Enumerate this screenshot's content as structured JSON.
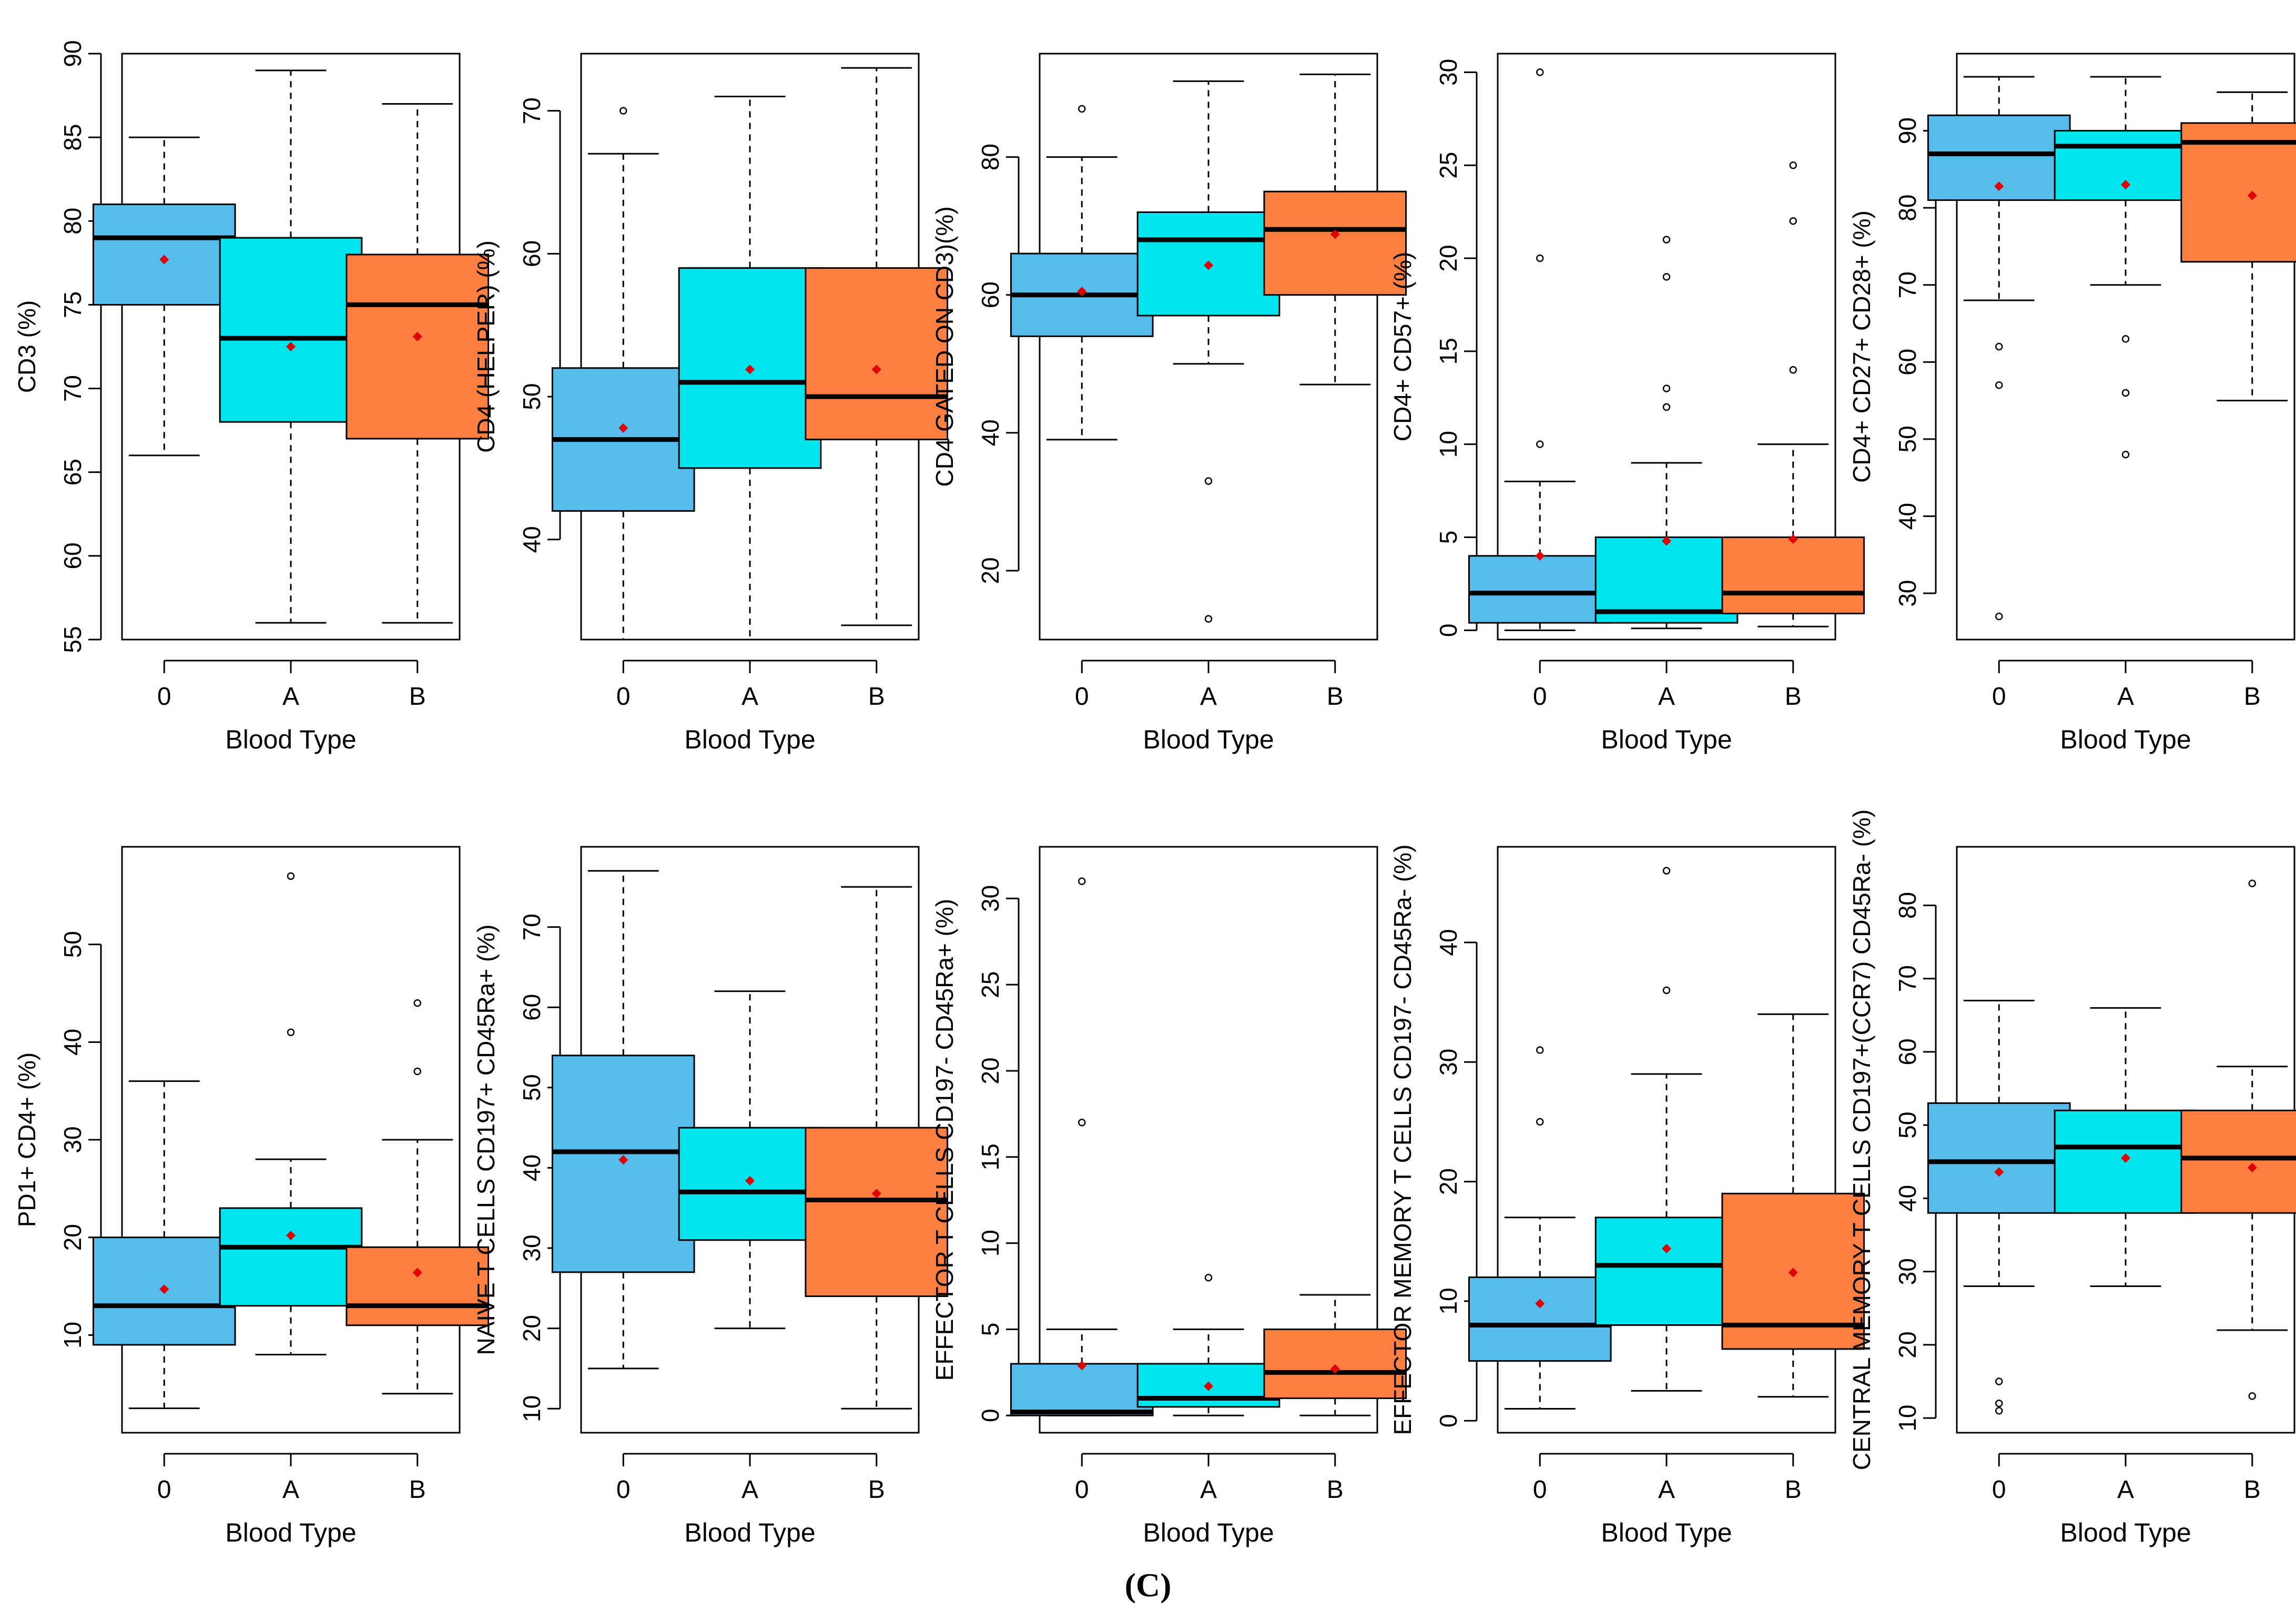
{
  "figure": {
    "panel_label": "(C)",
    "colors": {
      "0": "#56BCEC",
      "A": "#00E5EE",
      "B": "#FF7F40",
      "mean_marker": "#E00000"
    }
  },
  "chart_data": [
    {
      "type": "box",
      "title": "",
      "xlabel": "Blood Type",
      "ylabel": "CD3 (%)",
      "ylim": [
        55,
        90
      ],
      "yticks": [
        55,
        60,
        65,
        70,
        75,
        80,
        85,
        90
      ],
      "categories": [
        "0",
        "A",
        "B"
      ],
      "boxes": [
        {
          "whislo": 66,
          "q1": 75,
          "med": 79,
          "q3": 81,
          "whishi": 85,
          "mean": 77.7,
          "fliers": []
        },
        {
          "whislo": 56,
          "q1": 68,
          "med": 73,
          "q3": 79,
          "whishi": 89,
          "mean": 72.5,
          "fliers": []
        },
        {
          "whislo": 56,
          "q1": 67,
          "med": 75,
          "q3": 78,
          "whishi": 87,
          "mean": 73.1,
          "fliers": []
        }
      ]
    },
    {
      "type": "box",
      "title": "",
      "xlabel": "Blood Type",
      "ylabel": "CD4 (HELPER) (%)",
      "ylim": [
        33,
        74
      ],
      "yticks": [
        40,
        50,
        60,
        70
      ],
      "categories": [
        "0",
        "A",
        "B"
      ],
      "boxes": [
        {
          "whislo": 33,
          "q1": 42,
          "med": 47,
          "q3": 52,
          "whishi": 67,
          "mean": 47.8,
          "fliers": [
            70
          ]
        },
        {
          "whislo": 33,
          "q1": 45,
          "med": 51,
          "q3": 59,
          "whishi": 71,
          "mean": 51.9,
          "fliers": []
        },
        {
          "whislo": 34,
          "q1": 47,
          "med": 50,
          "q3": 59,
          "whishi": 73,
          "mean": 51.9,
          "fliers": []
        }
      ]
    },
    {
      "type": "box",
      "title": "",
      "xlabel": "Blood Type",
      "ylabel": "CD4 GATED ON CD3)(%)",
      "ylim": [
        10,
        95
      ],
      "yticks": [
        20,
        40,
        60,
        80
      ],
      "categories": [
        "0",
        "A",
        "B"
      ],
      "boxes": [
        {
          "whislo": 39,
          "q1": 54,
          "med": 60,
          "q3": 66,
          "whishi": 80,
          "mean": 60.5,
          "fliers": [
            87
          ]
        },
        {
          "whislo": 50,
          "q1": 57,
          "med": 68,
          "q3": 72,
          "whishi": 91,
          "mean": 64.3,
          "fliers": [
            33,
            13
          ]
        },
        {
          "whislo": 47,
          "q1": 60,
          "med": 69.5,
          "q3": 75,
          "whishi": 92,
          "mean": 68.8,
          "fliers": []
        }
      ]
    },
    {
      "type": "box",
      "title": "",
      "xlabel": "Blood Type",
      "ylabel": "CD4+ CD57+ (%)",
      "ylim": [
        -0.5,
        31
      ],
      "yticks": [
        0,
        5,
        10,
        15,
        20,
        25,
        30
      ],
      "categories": [
        "0",
        "A",
        "B"
      ],
      "boxes": [
        {
          "whislo": 0,
          "q1": 0.4,
          "med": 2,
          "q3": 4,
          "whishi": 8,
          "mean": 4,
          "fliers": [
            10,
            20,
            30
          ]
        },
        {
          "whislo": 0.1,
          "q1": 0.4,
          "med": 1,
          "q3": 5,
          "whishi": 9,
          "mean": 4.8,
          "fliers": [
            12,
            13,
            19,
            21
          ]
        },
        {
          "whislo": 0.2,
          "q1": 0.9,
          "med": 2,
          "q3": 5,
          "whishi": 10,
          "mean": 4.9,
          "fliers": [
            14,
            22,
            25
          ]
        }
      ]
    },
    {
      "type": "box",
      "title": "",
      "xlabel": "Blood Type",
      "ylabel": "CD4+ CD27+ CD28+ (%)",
      "ylim": [
        24,
        100
      ],
      "yticks": [
        30,
        40,
        50,
        60,
        70,
        80,
        90
      ],
      "categories": [
        "0",
        "A",
        "B"
      ],
      "boxes": [
        {
          "whislo": 68,
          "q1": 81,
          "med": 87,
          "q3": 92,
          "whishi": 97,
          "mean": 82.8,
          "fliers": [
            62,
            57,
            27
          ]
        },
        {
          "whislo": 70,
          "q1": 81,
          "med": 88,
          "q3": 90,
          "whishi": 97,
          "mean": 83,
          "fliers": [
            63,
            56,
            48
          ]
        },
        {
          "whislo": 55,
          "q1": 73,
          "med": 88.5,
          "q3": 91,
          "whishi": 95,
          "mean": 81.6,
          "fliers": []
        }
      ]
    },
    {
      "type": "box",
      "title": "",
      "xlabel": "Blood Type",
      "ylabel": "PD1+ CD4+ (%)",
      "ylim": [
        0,
        60
      ],
      "yticks": [
        10,
        20,
        30,
        40,
        50
      ],
      "categories": [
        "0",
        "A",
        "B"
      ],
      "boxes": [
        {
          "whislo": 2.5,
          "q1": 9,
          "med": 13,
          "q3": 20,
          "whishi": 36,
          "mean": 14.7,
          "fliers": []
        },
        {
          "whislo": 8,
          "q1": 13,
          "med": 19,
          "q3": 23,
          "whishi": 28,
          "mean": 20.2,
          "fliers": [
            41,
            57
          ]
        },
        {
          "whislo": 4,
          "q1": 11,
          "med": 13,
          "q3": 19,
          "whishi": 30,
          "mean": 16.4,
          "fliers": [
            37,
            44
          ]
        }
      ]
    },
    {
      "type": "box",
      "title": "",
      "xlabel": "Blood Type",
      "ylabel": "NAIVE T CELLS CD197+ CD45Ra+ (%)",
      "ylim": [
        7,
        80
      ],
      "yticks": [
        10,
        20,
        30,
        40,
        50,
        60,
        70
      ],
      "categories": [
        "0",
        "A",
        "B"
      ],
      "boxes": [
        {
          "whislo": 15,
          "q1": 27,
          "med": 42,
          "q3": 54,
          "whishi": 77,
          "mean": 41,
          "fliers": []
        },
        {
          "whislo": 20,
          "q1": 31,
          "med": 37,
          "q3": 45,
          "whishi": 62,
          "mean": 38.4,
          "fliers": []
        },
        {
          "whislo": 10,
          "q1": 24,
          "med": 36,
          "q3": 45,
          "whishi": 75,
          "mean": 36.8,
          "fliers": []
        }
      ]
    },
    {
      "type": "box",
      "title": "",
      "xlabel": "Blood Type",
      "ylabel": "EFFECTOR T CELLS CD197- CD45Ra+ (%)",
      "ylim": [
        -1,
        33
      ],
      "yticks": [
        0,
        5,
        10,
        15,
        20,
        25,
        30
      ],
      "categories": [
        "0",
        "A",
        "B"
      ],
      "boxes": [
        {
          "whislo": 0,
          "q1": 0,
          "med": 0.2,
          "q3": 3,
          "whishi": 5,
          "mean": 2.9,
          "fliers": [
            17,
            31
          ]
        },
        {
          "whislo": 0,
          "q1": 0.5,
          "med": 1,
          "q3": 3,
          "whishi": 5,
          "mean": 1.7,
          "fliers": [
            8
          ]
        },
        {
          "whislo": 0,
          "q1": 1,
          "med": 2.5,
          "q3": 5,
          "whishi": 7,
          "mean": 2.7,
          "fliers": []
        }
      ]
    },
    {
      "type": "box",
      "title": "",
      "xlabel": "Blood Type",
      "ylabel": "EFFECTOR MEMORY T CELLS CD197- CD45Ra- (%)",
      "ylim": [
        -1,
        48
      ],
      "yticks": [
        0,
        10,
        20,
        30,
        40
      ],
      "categories": [
        "0",
        "A",
        "B"
      ],
      "boxes": [
        {
          "whislo": 1,
          "q1": 5,
          "med": 8,
          "q3": 12,
          "whishi": 17,
          "mean": 9.8,
          "fliers": [
            25,
            31
          ]
        },
        {
          "whislo": 2.5,
          "q1": 8,
          "med": 13,
          "q3": 17,
          "whishi": 29,
          "mean": 14.4,
          "fliers": [
            36,
            46
          ]
        },
        {
          "whislo": 2,
          "q1": 6,
          "med": 8,
          "q3": 19,
          "whishi": 34,
          "mean": 12.4,
          "fliers": []
        }
      ]
    },
    {
      "type": "box",
      "title": "",
      "xlabel": "Blood Type",
      "ylabel": "CENTRAL MEMORY T CELLS CD197+(CCR7) CD45Ra- (%)",
      "ylim": [
        8,
        88
      ],
      "yticks": [
        10,
        20,
        30,
        40,
        50,
        60,
        70,
        80
      ],
      "categories": [
        "0",
        "A",
        "B"
      ],
      "boxes": [
        {
          "whislo": 28,
          "q1": 38,
          "med": 45,
          "q3": 53,
          "whishi": 67,
          "mean": 43.6,
          "fliers": [
            15,
            12,
            11
          ]
        },
        {
          "whislo": 28,
          "q1": 38,
          "med": 47,
          "q3": 52,
          "whishi": 66,
          "mean": 45.5,
          "fliers": []
        },
        {
          "whislo": 22,
          "q1": 38,
          "med": 45.5,
          "q3": 52,
          "whishi": 58,
          "mean": 44.2,
          "fliers": [
            13,
            83
          ]
        }
      ]
    }
  ]
}
